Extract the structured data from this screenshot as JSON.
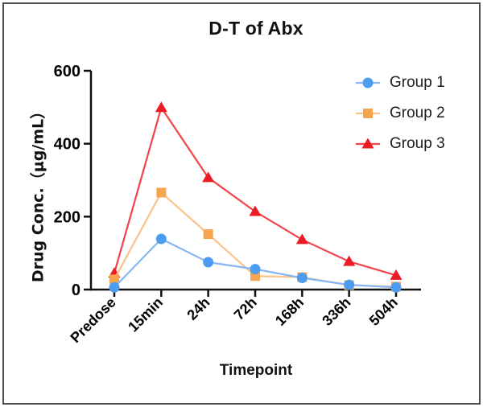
{
  "frame": {
    "border_color": "#4d4d4d",
    "background": "#ffffff"
  },
  "axis": {
    "color": "#111111",
    "tick_color": "#111111"
  },
  "chart_data": {
    "type": "line",
    "title": "D-T of Abx",
    "xlabel": "Timepoint",
    "ylabel": "Drug Conc.（μg/mL）",
    "categories": [
      "Predose",
      "15min",
      "24h",
      "72h",
      "168h",
      "336h",
      "504h"
    ],
    "ylim": [
      0,
      600
    ],
    "yticks": [
      0,
      200,
      400,
      600
    ],
    "grid": false,
    "legend_position": "top-right",
    "series": [
      {
        "name": "Group 1",
        "marker": "circle",
        "marker_color": "#4E9CF0",
        "line_color": "#85B7F4",
        "values": [
          6,
          139,
          75,
          56,
          32,
          13,
          6
        ]
      },
      {
        "name": "Group 2",
        "marker": "square",
        "marker_color": "#F6A54E",
        "line_color": "#FAC188",
        "values": [
          28,
          266,
          152,
          37,
          34,
          12,
          8
        ]
      },
      {
        "name": "Group 3",
        "marker": "triangle",
        "marker_color": "#EC1C24",
        "line_color": "#F2434B",
        "values": [
          45,
          499,
          307,
          214,
          137,
          77,
          39
        ]
      }
    ]
  }
}
